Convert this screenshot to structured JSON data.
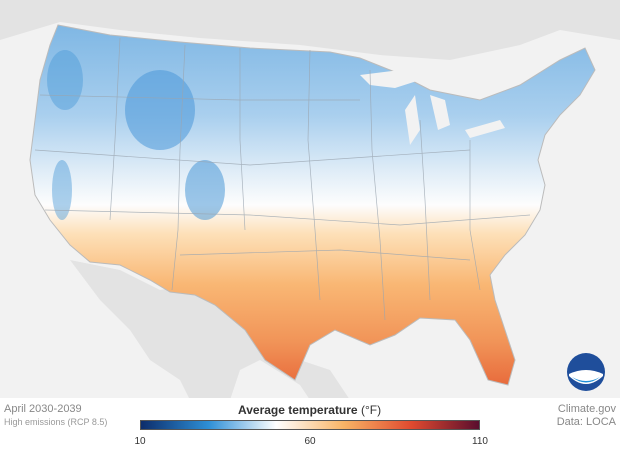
{
  "map": {
    "period": "April 2030-2039",
    "scenario": "High emissions (RCP 8.5)",
    "legend": {
      "title": "Average temperature",
      "unit": "(°F)",
      "min_label": "10",
      "mid_label": "60",
      "max_label": "110",
      "scale": [
        10,
        60,
        110
      ],
      "colors": [
        "#0d2d6b",
        "#2e8fd6",
        "#ffffff",
        "#f9b466",
        "#e04a2f",
        "#5a0e2e"
      ]
    },
    "source_site": "Climate.gov",
    "source_data": "Data: LOCA",
    "logo_text": "NOAA"
  }
}
